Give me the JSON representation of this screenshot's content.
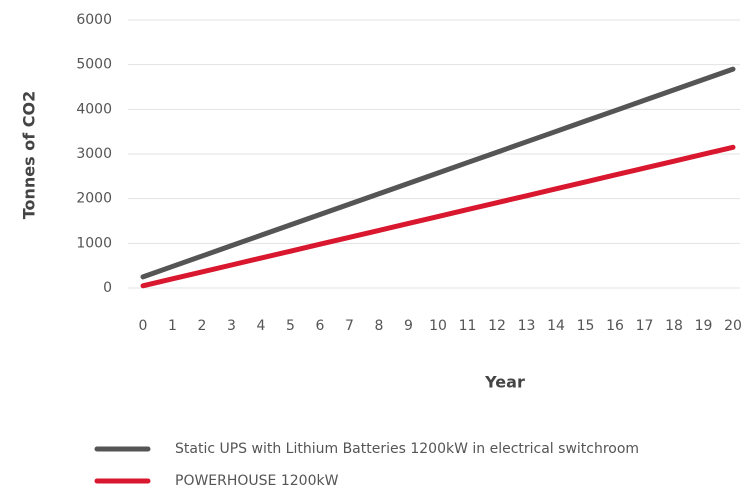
{
  "chart_data": {
    "type": "line",
    "x": [
      0,
      1,
      2,
      3,
      4,
      5,
      6,
      7,
      8,
      9,
      10,
      11,
      12,
      13,
      14,
      15,
      16,
      17,
      18,
      19,
      20
    ],
    "xlim": [
      0,
      20
    ],
    "xticks": [
      0,
      1,
      2,
      3,
      4,
      5,
      6,
      7,
      8,
      9,
      10,
      11,
      12,
      13,
      14,
      15,
      16,
      17,
      18,
      19,
      20
    ],
    "ylim": [
      0,
      6000
    ],
    "yticks": [
      0,
      1000,
      2000,
      3000,
      4000,
      5000,
      6000
    ],
    "xlabel": "Year",
    "ylabel": "Tonnes of CO2",
    "grid": true,
    "legend": "bottom",
    "series": [
      {
        "name": "Static UPS with Lithium Batteries 1200kW in electrical switchroom",
        "color": "#555555",
        "values": [
          250,
          483,
          715,
          948,
          1180,
          1413,
          1645,
          1878,
          2110,
          2343,
          2575,
          2808,
          3040,
          3273,
          3505,
          3738,
          3970,
          4203,
          4435,
          4668,
          4900
        ]
      },
      {
        "name": "POWERHOUSE 1200kW",
        "color": "#d9172e",
        "values": [
          50,
          205,
          360,
          515,
          670,
          825,
          980,
          1135,
          1290,
          1445,
          1600,
          1755,
          1910,
          2065,
          2220,
          2375,
          2530,
          2685,
          2840,
          2995,
          3150
        ]
      }
    ]
  }
}
